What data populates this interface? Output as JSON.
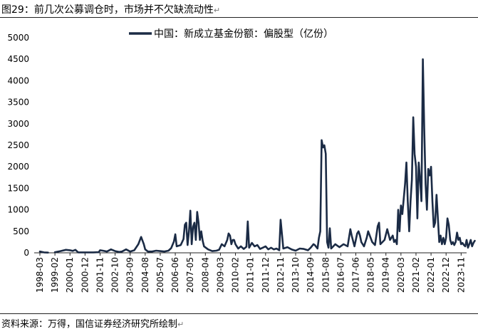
{
  "header": {
    "figure_title": "图29：前几次公募调仓时，市场并不欠缺流动性",
    "return_mark": "↵"
  },
  "footer": {
    "source": "资料来源：万得，国信证券经济研究所绘制",
    "return_mark": "↵"
  },
  "chart_data": {
    "type": "line",
    "title": "图29：前几次公募调仓时，市场并不欠缺流动性",
    "xlabel": "",
    "ylabel": "",
    "ylim": [
      0,
      5000
    ],
    "yticks": [
      0,
      500,
      1000,
      1500,
      2000,
      2500,
      3000,
      3500,
      4000,
      4500,
      5000
    ],
    "x_start": "1998-03",
    "x_end": "2024-03",
    "x_tick_labels": [
      "1998-03",
      "1999-02",
      "2000-01",
      "2000-12",
      "2001-11",
      "2002-10",
      "2003-09",
      "2004-08",
      "2005-07",
      "2006-06",
      "2007-05",
      "2008-04",
      "2009-03",
      "2010-02",
      "2011-01",
      "2011-12",
      "2012-11",
      "2013-10",
      "2014-09",
      "2015-08",
      "2016-07",
      "2017-06",
      "2018-05",
      "2019-04",
      "2020-03",
      "2021-02",
      "2022-01",
      "2022-12",
      "2023-11"
    ],
    "legend_position": "top-center",
    "grid": false,
    "series": [
      {
        "name": "中国：新成立基金份额：偏股型（亿份）",
        "color": "#1b2b45",
        "points": [
          [
            "1998-03",
            30
          ],
          [
            "1998-06",
            10
          ],
          [
            "1998-09",
            5
          ],
          [
            "1998-10",
            null
          ],
          [
            "1999-01",
            null
          ],
          [
            "1999-02",
            15
          ],
          [
            "1999-06",
            40
          ],
          [
            "1999-10",
            70
          ],
          [
            "2000-01",
            60
          ],
          [
            "2000-03",
            45
          ],
          [
            "2000-05",
            70
          ],
          [
            "2000-07",
            10
          ],
          [
            "2000-12",
            10
          ],
          [
            "2001-06",
            10
          ],
          [
            "2001-10",
            15
          ],
          [
            "2001-11",
            60
          ],
          [
            "2002-01",
            50
          ],
          [
            "2002-04",
            30
          ],
          [
            "2002-07",
            80
          ],
          [
            "2002-10",
            40
          ],
          [
            "2003-01",
            20
          ],
          [
            "2003-03",
            30
          ],
          [
            "2003-06",
            80
          ],
          [
            "2003-09",
            30
          ],
          [
            "2003-12",
            60
          ],
          [
            "2004-03",
            200
          ],
          [
            "2004-05",
            370
          ],
          [
            "2004-07",
            200
          ],
          [
            "2004-08",
            80
          ],
          [
            "2004-10",
            30
          ],
          [
            "2005-01",
            30
          ],
          [
            "2005-04",
            50
          ],
          [
            "2005-07",
            40
          ],
          [
            "2005-10",
            30
          ],
          [
            "2006-01",
            50
          ],
          [
            "2006-03",
            110
          ],
          [
            "2006-05",
            260
          ],
          [
            "2006-06",
            430
          ],
          [
            "2006-07",
            150
          ],
          [
            "2006-10",
            180
          ],
          [
            "2006-12",
            320
          ],
          [
            "2007-01",
            650
          ],
          [
            "2007-02",
            700
          ],
          [
            "2007-03",
            180
          ],
          [
            "2007-04",
            500
          ],
          [
            "2007-05",
            980
          ],
          [
            "2007-06",
            200
          ],
          [
            "2007-07",
            600
          ],
          [
            "2007-08",
            700
          ],
          [
            "2007-09",
            300
          ],
          [
            "2007-10",
            950
          ],
          [
            "2007-11",
            700
          ],
          [
            "2007-12",
            300
          ],
          [
            "2008-01",
            500
          ],
          [
            "2008-02",
            280
          ],
          [
            "2008-03",
            150
          ],
          [
            "2008-06",
            80
          ],
          [
            "2008-09",
            40
          ],
          [
            "2008-12",
            50
          ],
          [
            "2009-02",
            70
          ],
          [
            "2009-04",
            200
          ],
          [
            "2009-06",
            150
          ],
          [
            "2009-08",
            300
          ],
          [
            "2009-09",
            450
          ],
          [
            "2009-10",
            400
          ],
          [
            "2009-11",
            200
          ],
          [
            "2009-12",
            300
          ],
          [
            "2010-01",
            300
          ],
          [
            "2010-02",
            200
          ],
          [
            "2010-04",
            100
          ],
          [
            "2010-06",
            150
          ],
          [
            "2010-08",
            90
          ],
          [
            "2010-10",
            140
          ],
          [
            "2010-11",
            730
          ],
          [
            "2010-12",
            120
          ],
          [
            "2011-02",
            230
          ],
          [
            "2011-04",
            150
          ],
          [
            "2011-06",
            180
          ],
          [
            "2011-08",
            90
          ],
          [
            "2011-10",
            120
          ],
          [
            "2011-12",
            150
          ],
          [
            "2012-02",
            80
          ],
          [
            "2012-04",
            120
          ],
          [
            "2012-06",
            80
          ],
          [
            "2012-08",
            100
          ],
          [
            "2012-10",
            60
          ],
          [
            "2012-11",
            770
          ],
          [
            "2013-01",
            100
          ],
          [
            "2013-04",
            130
          ],
          [
            "2013-07",
            80
          ],
          [
            "2013-10",
            50
          ],
          [
            "2014-01",
            100
          ],
          [
            "2014-04",
            90
          ],
          [
            "2014-07",
            60
          ],
          [
            "2014-09",
            120
          ],
          [
            "2014-11",
            200
          ],
          [
            "2014-12",
            180
          ],
          [
            "2015-02",
            100
          ],
          [
            "2015-03",
            350
          ],
          [
            "2015-04",
            500
          ],
          [
            "2015-05",
            2620
          ],
          [
            "2015-06",
            2450
          ],
          [
            "2015-07",
            2500
          ],
          [
            "2015-08",
            2300
          ],
          [
            "2015-09",
            250
          ],
          [
            "2015-10",
            120
          ],
          [
            "2015-11",
            570
          ],
          [
            "2015-12",
            100
          ],
          [
            "2016-03",
            200
          ],
          [
            "2016-06",
            130
          ],
          [
            "2016-09",
            200
          ],
          [
            "2016-12",
            150
          ],
          [
            "2017-02",
            550
          ],
          [
            "2017-03",
            400
          ],
          [
            "2017-05",
            150
          ],
          [
            "2017-07",
            450
          ],
          [
            "2017-08",
            500
          ],
          [
            "2017-09",
            400
          ],
          [
            "2017-10",
            250
          ],
          [
            "2017-12",
            150
          ],
          [
            "2018-02",
            350
          ],
          [
            "2018-03",
            500
          ],
          [
            "2018-06",
            250
          ],
          [
            "2018-08",
            180
          ],
          [
            "2018-10",
            620
          ],
          [
            "2018-11",
            700
          ],
          [
            "2018-12",
            200
          ],
          [
            "2019-03",
            300
          ],
          [
            "2019-05",
            550
          ],
          [
            "2019-07",
            300
          ],
          [
            "2019-09",
            400
          ],
          [
            "2019-10",
            250
          ],
          [
            "2019-11",
            300
          ],
          [
            "2019-12",
            200
          ],
          [
            "2020-01",
            1000
          ],
          [
            "2020-02",
            500
          ],
          [
            "2020-03",
            1100
          ],
          [
            "2020-04",
            900
          ],
          [
            "2020-05",
            1250
          ],
          [
            "2020-06",
            1600
          ],
          [
            "2020-07",
            2100
          ],
          [
            "2020-08",
            1200
          ],
          [
            "2020-09",
            500
          ],
          [
            "2020-10",
            1200
          ],
          [
            "2020-11",
            1700
          ],
          [
            "2020-12",
            3150
          ],
          [
            "2021-01",
            2300
          ],
          [
            "2021-02",
            2000
          ],
          [
            "2021-03",
            800
          ],
          [
            "2021-04",
            2100
          ],
          [
            "2021-05",
            1700
          ],
          [
            "2021-06",
            1200
          ],
          [
            "2021-07",
            4500
          ],
          [
            "2021-08",
            2900
          ],
          [
            "2021-09",
            1600
          ],
          [
            "2021-10",
            1000
          ],
          [
            "2021-11",
            1950
          ],
          [
            "2021-12",
            1800
          ],
          [
            "2022-01",
            2000
          ],
          [
            "2022-02",
            1200
          ],
          [
            "2022-03",
            600
          ],
          [
            "2022-04",
            700
          ],
          [
            "2022-05",
            1350
          ],
          [
            "2022-06",
            800
          ],
          [
            "2022-07",
            250
          ],
          [
            "2022-08",
            400
          ],
          [
            "2022-09",
            200
          ],
          [
            "2022-10",
            350
          ],
          [
            "2022-11",
            200
          ],
          [
            "2022-12",
            350
          ],
          [
            "2023-01",
            800
          ],
          [
            "2023-02",
            650
          ],
          [
            "2023-03",
            300
          ],
          [
            "2023-04",
            200
          ],
          [
            "2023-05",
            250
          ],
          [
            "2023-06",
            180
          ],
          [
            "2023-07",
            250
          ],
          [
            "2023-08",
            470
          ],
          [
            "2023-09",
            300
          ],
          [
            "2023-10",
            350
          ],
          [
            "2023-11",
            200
          ],
          [
            "2023-12",
            230
          ],
          [
            "2024-01",
            180
          ],
          [
            "2024-02",
            150
          ],
          [
            "2024-03",
            300
          ],
          [
            "2024-04",
            120
          ],
          [
            "2024-05",
            200
          ],
          [
            "2024-06",
            300
          ],
          [
            "2024-07",
            150
          ],
          [
            "2024-08",
            230
          ],
          [
            "2024-09",
            280
          ]
        ]
      }
    ]
  }
}
